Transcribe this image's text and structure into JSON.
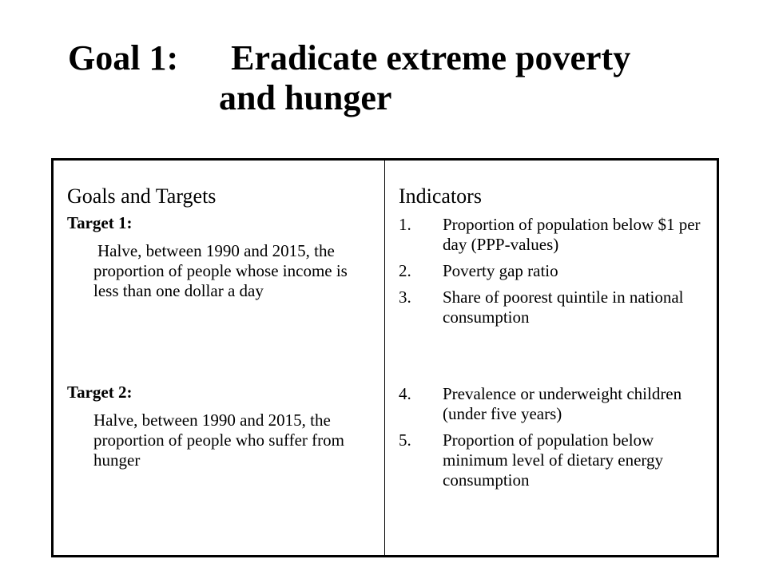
{
  "title": {
    "line1": "Goal 1:      Eradicate extreme poverty",
    "line2": "and hunger"
  },
  "table": {
    "headers": [
      "Goals and Targets",
      "Indicators"
    ],
    "rows": [
      {
        "target_label": "Target 1:",
        "target_text": "Halve, between 1990 and 2015, the proportion of people whose income is less than one dollar a day",
        "indicators": [
          {
            "num": "1.",
            "text": "Proportion of population below $1 per day (PPP-values)"
          },
          {
            "num": "2.",
            "text": "Poverty gap ratio"
          },
          {
            "num": "3.",
            "text": "Share of poorest quintile in national consumption"
          }
        ]
      },
      {
        "target_label": "Target 2:",
        "target_text": "Halve, between 1990 and 2015, the proportion of people who suffer from hunger",
        "indicators": [
          {
            "num": "4.",
            "text": "Prevalence or underweight children (under five years)"
          },
          {
            "num": "5.",
            "text": "Proportion of population below minimum level of dietary energy consumption"
          }
        ]
      }
    ]
  }
}
